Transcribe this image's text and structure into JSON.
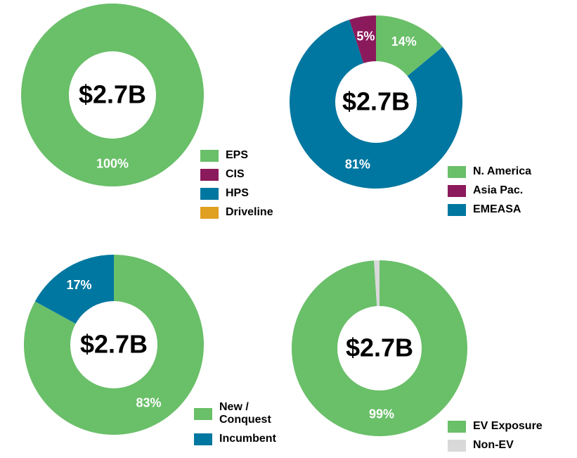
{
  "chart_data": [
    {
      "type": "pie",
      "center_label": "$2.7B",
      "start_angle": 0,
      "direction": "clockwise",
      "categories": [
        "EPS",
        "CIS",
        "HPS",
        "Driveline"
      ],
      "values": [
        100,
        0,
        0,
        0
      ],
      "value_labels": [
        "100%",
        null,
        null,
        null
      ],
      "colors": [
        "#6abf69",
        "#8b1a5c",
        "#0077a0",
        "#e0a020"
      ]
    },
    {
      "type": "pie",
      "center_label": "$2.7B",
      "start_angle": 50.4,
      "direction": "counterclockwise",
      "categories": [
        "N. America",
        "Asia Pac.",
        "EMEASA"
      ],
      "values": [
        14,
        5,
        81
      ],
      "value_labels": [
        "14%",
        "5%",
        "81%"
      ],
      "colors": [
        "#6abf69",
        "#8b1a5c",
        "#0077a0"
      ]
    },
    {
      "type": "pie",
      "center_label": "$2.7B",
      "start_angle": 0,
      "direction": "clockwise",
      "categories": [
        "New / Conquest",
        "Incumbent"
      ],
      "values": [
        83,
        17
      ],
      "value_labels": [
        "83%",
        "17%"
      ],
      "colors": [
        "#6abf69",
        "#0077a0"
      ]
    },
    {
      "type": "pie",
      "center_label": "$2.7B",
      "start_angle": 0,
      "direction": "clockwise",
      "categories": [
        "EV Exposure",
        "Non-EV"
      ],
      "values": [
        99,
        1
      ],
      "value_labels": [
        "99%",
        null
      ],
      "colors": [
        "#6abf69",
        "#d9d9d9"
      ]
    }
  ]
}
